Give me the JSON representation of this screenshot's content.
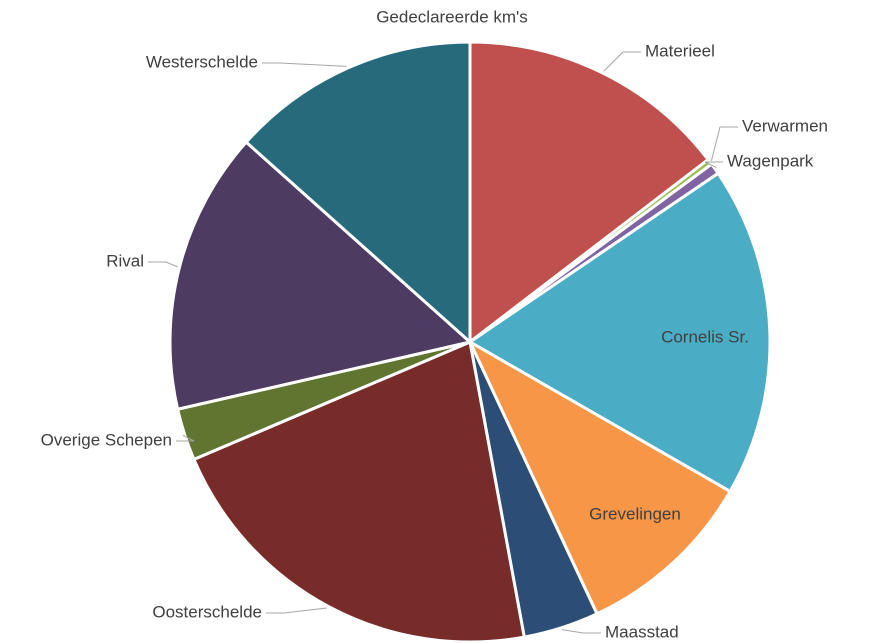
{
  "chart_data": {
    "type": "pie",
    "title": "Gedeclareerde km's",
    "categories": [
      "Materieel",
      "Verwarmen",
      "Wagenpark",
      "Cornelis Sr.",
      "Grevelingen",
      "Maasstad",
      "Oosterschelde",
      "Overige Schepen",
      "Rival",
      "Westerschelde"
    ],
    "values": [
      14.6,
      0.3,
      0.6,
      17.8,
      9.75,
      4.06,
      21.5,
      2.8,
      15.2,
      13.4
    ],
    "colors": [
      "#c0504d",
      "#9bbb59",
      "#8064a2",
      "#4bacc6",
      "#f79646",
      "#2c4d75",
      "#772c2a",
      "#5f7530",
      "#4d3b62",
      "#276a7c"
    ]
  }
}
